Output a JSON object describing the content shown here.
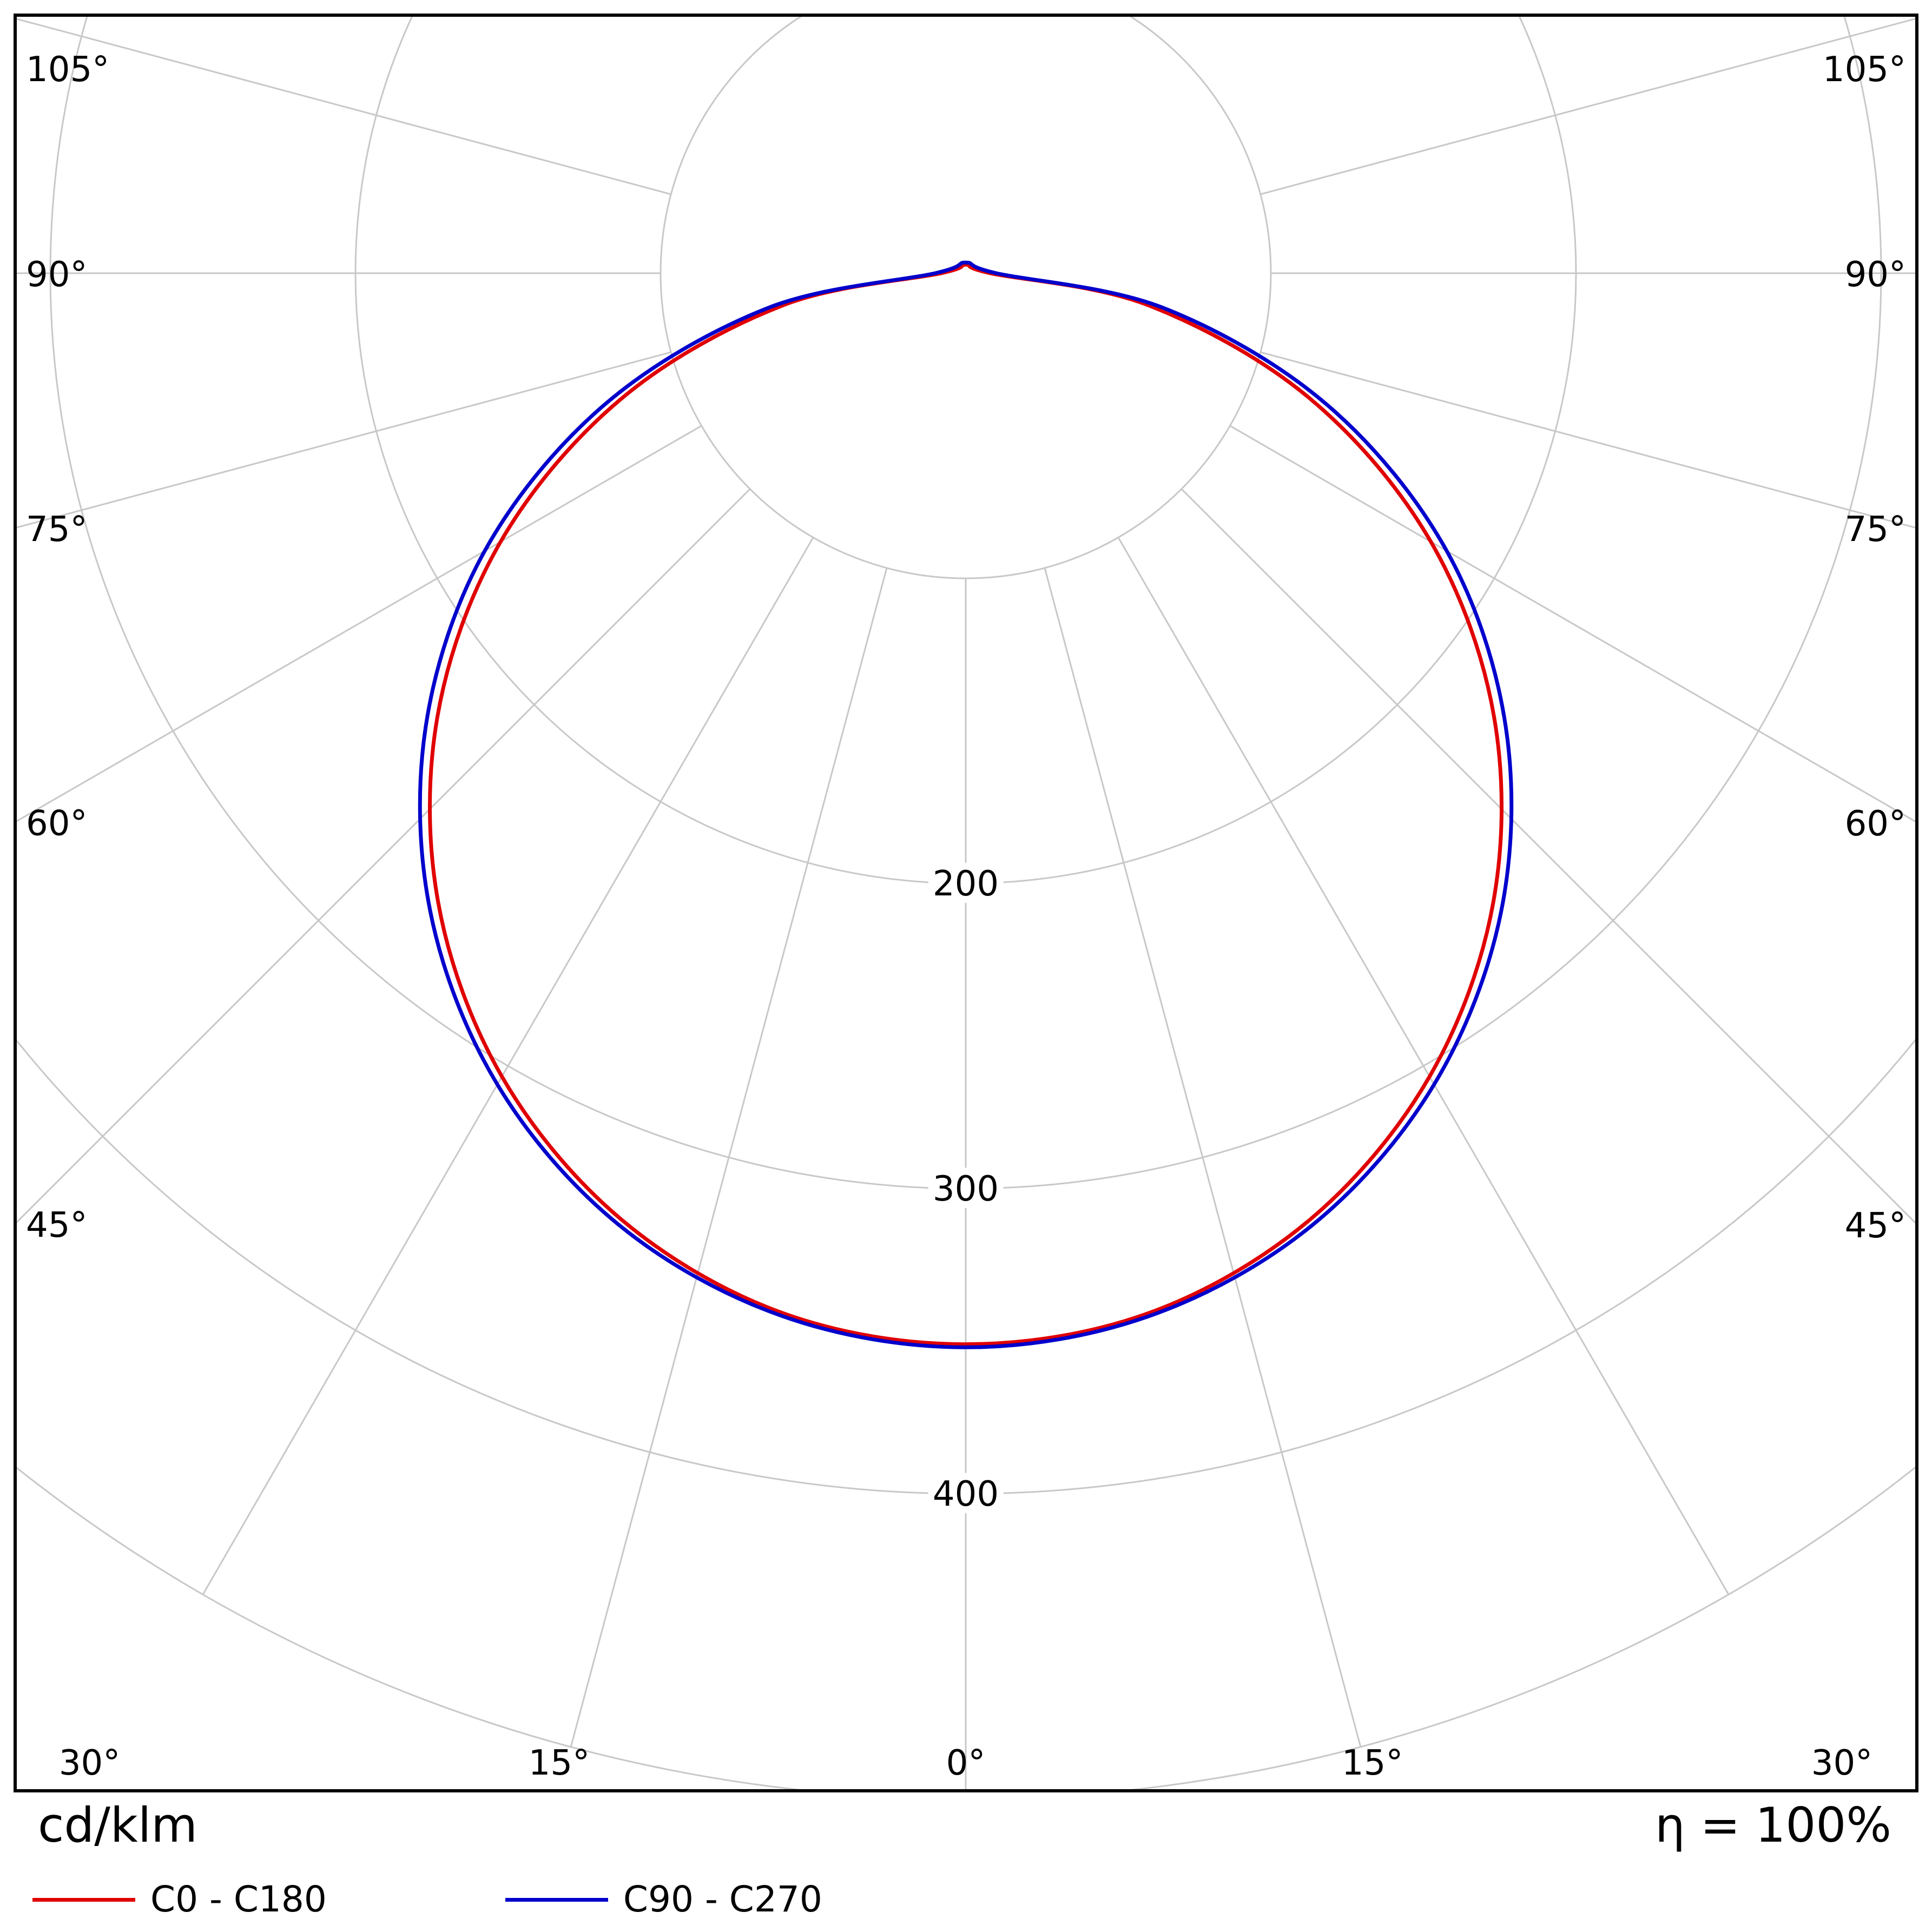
{
  "figure": {
    "kind": "luminaire polar intensity distribution diagram"
  },
  "chart_data": {
    "type": "line",
    "subtype": "polar-photometric-intensity-distribution",
    "title": "",
    "units": "cd/klm",
    "efficiency": "η = 100%",
    "orientation": "0° at nadir (bottom), angles increase symmetrically to both sides, 105° max shown",
    "angle_ticks_deg": [
      0,
      15,
      30,
      45,
      60,
      75,
      90,
      105
    ],
    "angle_tick_suffix": "°",
    "radial_ticks": [
      100,
      200,
      300,
      400,
      500
    ],
    "radial_tick_labels_shown": [
      "200",
      "300",
      "400"
    ],
    "rmax": 500,
    "grid_color": "#c8c8c8",
    "gamma_deg": [
      0,
      10,
      20,
      30,
      40,
      50,
      60,
      70,
      80,
      90
    ],
    "series": [
      {
        "name": "C0 - C180",
        "color": "#e00000",
        "values_cd_per_klm": [
          351,
          346,
          330,
          304,
          269,
          226,
          176,
          120,
          61,
          8
        ]
      },
      {
        "name": "C90 - C270",
        "color": "#0000cc",
        "values_cd_per_klm": [
          352,
          347,
          332,
          307,
          273,
          231,
          182,
          126,
          66,
          10
        ]
      }
    ]
  }
}
